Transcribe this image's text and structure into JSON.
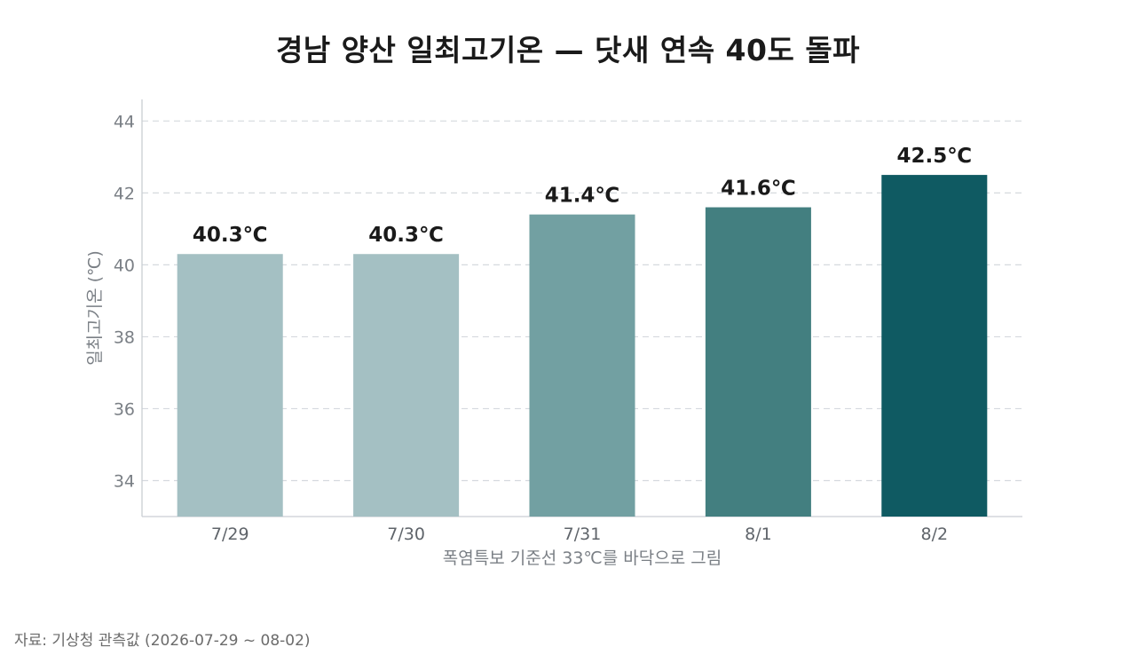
{
  "chart_data": {
    "type": "bar",
    "title": "경남 양산 일최고기온 — 닷새 연속 40도 돌파",
    "xlabel": "폭염특보 기준선 33℃를 바닥으로 그림",
    "ylabel": "일최고기온 (℃)",
    "categories": [
      "7/29",
      "7/30",
      "7/31",
      "8/1",
      "8/2"
    ],
    "values": [
      40.3,
      40.3,
      41.4,
      41.6,
      42.5
    ],
    "data_labels": [
      "40.3℃",
      "40.3℃",
      "41.4℃",
      "41.6℃",
      "42.5℃"
    ],
    "ylim": [
      33,
      44.6
    ],
    "yticks": [
      34,
      36,
      38,
      40,
      42,
      44
    ],
    "grid": true,
    "colors": [
      "#a4c0c3",
      "#a4c0c3",
      "#72a0a2",
      "#437f80",
      "#0f5a62"
    ],
    "grid_color": "#d5d9de",
    "axis_color": "#c9ced3"
  },
  "source": "자료: 기상청 관측값 (2026-07-29 ~ 08-02)"
}
